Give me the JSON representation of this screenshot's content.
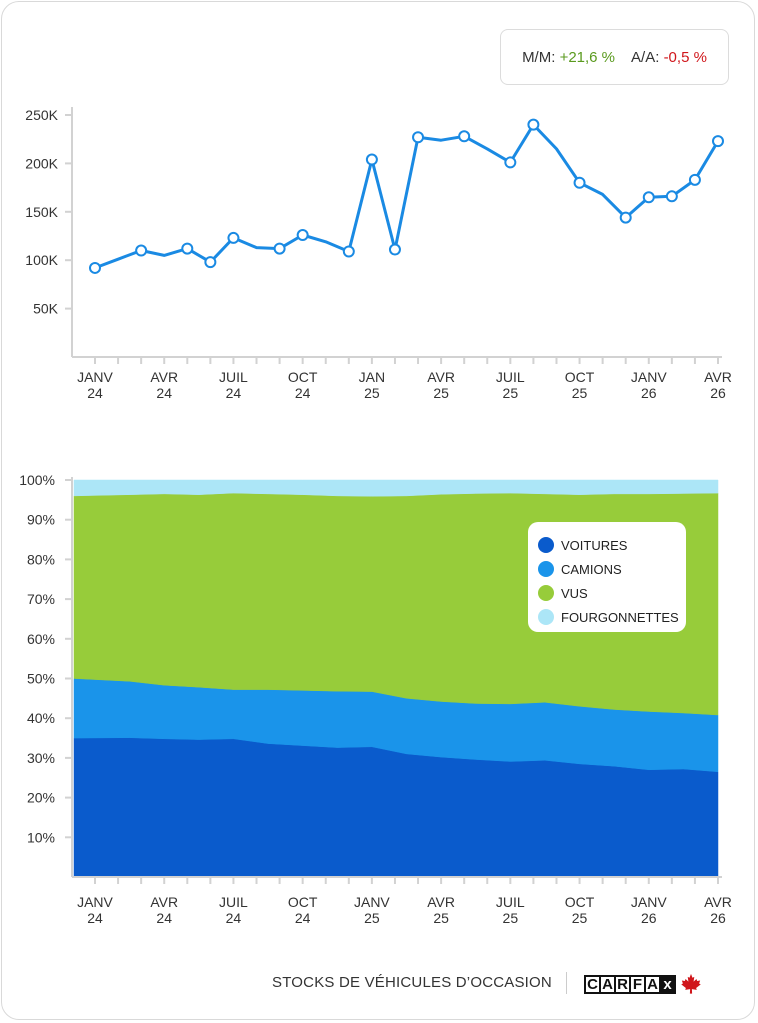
{
  "stats": {
    "mm_label": "M/M:",
    "mm_value": "+21,6 %",
    "aa_label": "A/A:",
    "aa_value": "-0,5 %",
    "colors": {
      "up": "#5a9a1e",
      "down": "#d0161b"
    }
  },
  "legend": {
    "items": [
      {
        "label": "VOITURES",
        "color": "#0a5bcc"
      },
      {
        "label": "CAMIONS",
        "color": "#1a94ea"
      },
      {
        "label": "VUS",
        "color": "#97cc3a"
      },
      {
        "label": "FOURGONNETTES",
        "color": "#ace6f7"
      }
    ]
  },
  "footer": {
    "title": "STOCKS DE VÉHICULES D’OCCASION",
    "logo_letters": [
      "C",
      "A",
      "R",
      "F",
      "A",
      "x"
    ]
  },
  "chart_data": [
    {
      "type": "line",
      "title": "",
      "color": "#1a8ae3",
      "ylim": [
        0,
        250000
      ],
      "y_ticks": [
        {
          "value": 50000,
          "label": "50K"
        },
        {
          "value": 100000,
          "label": "100K"
        },
        {
          "value": 150000,
          "label": "150K"
        },
        {
          "value": 200000,
          "label": "200K"
        },
        {
          "value": 250000,
          "label": "250K"
        }
      ],
      "x_ticks": [
        {
          "month": 0,
          "label": [
            "JANV",
            "24"
          ]
        },
        {
          "month": 3,
          "label": [
            "AVR",
            "24"
          ]
        },
        {
          "month": 6,
          "label": [
            "JUIL",
            "24"
          ]
        },
        {
          "month": 9,
          "label": [
            "OCT",
            "24"
          ]
        },
        {
          "month": 12,
          "label": [
            "JAN",
            "25"
          ]
        },
        {
          "month": 15,
          "label": [
            "AVR",
            "25"
          ]
        },
        {
          "month": 18,
          "label": [
            "JUIL",
            "25"
          ]
        },
        {
          "month": 21,
          "label": [
            "OCT",
            "25"
          ]
        },
        {
          "month": 24,
          "label": [
            "JANV",
            "26"
          ]
        },
        {
          "month": 27,
          "label": [
            "AVR",
            "26"
          ]
        }
      ],
      "points": [
        {
          "month": 0,
          "value": 92000,
          "marker": true
        },
        {
          "month": 1,
          "value": 101000,
          "marker": false
        },
        {
          "month": 2,
          "value": 110000,
          "marker": true
        },
        {
          "month": 3,
          "value": 105000,
          "marker": false
        },
        {
          "month": 4,
          "value": 112000,
          "marker": true
        },
        {
          "month": 5,
          "value": 98000,
          "marker": true
        },
        {
          "month": 6,
          "value": 123000,
          "marker": true
        },
        {
          "month": 7,
          "value": 113000,
          "marker": false
        },
        {
          "month": 8,
          "value": 112000,
          "marker": true
        },
        {
          "month": 9,
          "value": 126000,
          "marker": true
        },
        {
          "month": 10,
          "value": 119000,
          "marker": false
        },
        {
          "month": 11,
          "value": 109000,
          "marker": true
        },
        {
          "month": 12,
          "value": 204000,
          "marker": true
        },
        {
          "month": 13,
          "value": 111000,
          "marker": true
        },
        {
          "month": 14,
          "value": 227000,
          "marker": true
        },
        {
          "month": 15,
          "value": 224000,
          "marker": false
        },
        {
          "month": 16,
          "value": 228000,
          "marker": true
        },
        {
          "month": 17,
          "value": 215000,
          "marker": false
        },
        {
          "month": 18,
          "value": 201000,
          "marker": true
        },
        {
          "month": 19,
          "value": 240000,
          "marker": true
        },
        {
          "month": 20,
          "value": 215000,
          "marker": false
        },
        {
          "month": 21,
          "value": 180000,
          "marker": true
        },
        {
          "month": 22,
          "value": 168000,
          "marker": false
        },
        {
          "month": 23,
          "value": 144000,
          "marker": true
        },
        {
          "month": 24,
          "value": 165000,
          "marker": true
        },
        {
          "month": 25,
          "value": 166000,
          "marker": true
        },
        {
          "month": 26,
          "value": 183000,
          "marker": true
        },
        {
          "month": 27,
          "value": 223000,
          "marker": true
        }
      ]
    },
    {
      "type": "area",
      "stacked": true,
      "title": "",
      "ylim": [
        0,
        100
      ],
      "y_ticks": [
        {
          "value": 10,
          "label": "10%"
        },
        {
          "value": 20,
          "label": "20%"
        },
        {
          "value": 30,
          "label": "30%"
        },
        {
          "value": 40,
          "label": "40%"
        },
        {
          "value": 50,
          "label": "50%"
        },
        {
          "value": 60,
          "label": "60%"
        },
        {
          "value": 70,
          "label": "70%"
        },
        {
          "value": 80,
          "label": "80%"
        },
        {
          "value": 90,
          "label": "90%"
        },
        {
          "value": 100,
          "label": "100%"
        }
      ],
      "x_ticks": [
        {
          "month": 0,
          "label": [
            "JANV",
            "24"
          ]
        },
        {
          "month": 3,
          "label": [
            "AVR",
            "24"
          ]
        },
        {
          "month": 6,
          "label": [
            "JUIL",
            "24"
          ]
        },
        {
          "month": 9,
          "label": [
            "OCT",
            "24"
          ]
        },
        {
          "month": 12,
          "label": [
            "JANV",
            "25"
          ]
        },
        {
          "month": 15,
          "label": [
            "AVR",
            "25"
          ]
        },
        {
          "month": 18,
          "label": [
            "JUIL",
            "25"
          ]
        },
        {
          "month": 21,
          "label": [
            "OCT",
            "25"
          ]
        },
        {
          "month": 24,
          "label": [
            "JANV",
            "26"
          ]
        },
        {
          "month": 27,
          "label": [
            "AVR",
            "26"
          ]
        }
      ],
      "months": [
        0,
        1.5,
        3,
        4.5,
        6,
        7.5,
        9,
        10.5,
        12,
        13.5,
        15,
        16.5,
        18,
        19.5,
        21,
        22.5,
        24,
        25.5,
        27
      ],
      "series": [
        {
          "name": "VOITURES",
          "color": "#0a5bcc",
          "cumulative": [
            35.0,
            35.1,
            34.8,
            34.6,
            34.8,
            33.6,
            33.1,
            32.6,
            32.8,
            31.0,
            30.2,
            29.6,
            29.1,
            29.4,
            28.5,
            27.9,
            27.0,
            27.2,
            26.5
          ]
        },
        {
          "name": "CAMIONS",
          "color": "#1a94ea",
          "cumulative": [
            50.0,
            49.3,
            48.3,
            47.8,
            47.2,
            47.2,
            47.0,
            46.8,
            46.7,
            45.0,
            44.2,
            43.7,
            43.6,
            44.0,
            43.0,
            42.2,
            41.7,
            41.3,
            40.8
          ]
        },
        {
          "name": "VUS",
          "color": "#97cc3a",
          "cumulative": [
            96.0,
            96.3,
            96.5,
            96.3,
            96.7,
            96.5,
            96.3,
            96.0,
            95.9,
            96.0,
            96.4,
            96.6,
            96.7,
            96.5,
            96.3,
            96.5,
            96.5,
            96.6,
            96.7
          ]
        },
        {
          "name": "FOURGONNETTES",
          "color": "#ace6f7",
          "cumulative": [
            100,
            100,
            100,
            100,
            100,
            100,
            100,
            100,
            100,
            100,
            100,
            100,
            100,
            100,
            100,
            100,
            100,
            100,
            100
          ]
        }
      ]
    }
  ]
}
